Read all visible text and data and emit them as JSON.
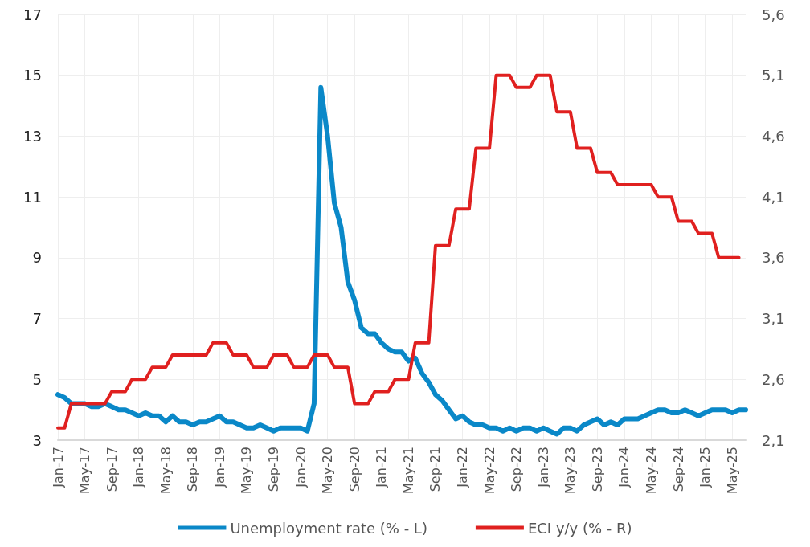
{
  "chart_data": {
    "type": "line",
    "categories": [
      "Jan-17",
      null,
      null,
      null,
      "May-17",
      null,
      null,
      null,
      "Sep-17",
      null,
      null,
      null,
      "Jan-18",
      null,
      null,
      null,
      "May-18",
      null,
      null,
      null,
      "Sep-18",
      null,
      null,
      null,
      "Jan-19",
      null,
      null,
      null,
      "May-19",
      null,
      null,
      null,
      "Sep-19",
      null,
      null,
      null,
      "Jan-20",
      null,
      null,
      null,
      "May-20",
      null,
      null,
      null,
      "Sep-20",
      null,
      null,
      null,
      "Jan-21",
      null,
      null,
      null,
      "May-21",
      null,
      null,
      null,
      "Sep-21",
      null,
      null,
      null,
      "Jan-22",
      null,
      null,
      null,
      "May-22",
      null,
      null,
      null,
      "Sep-22",
      null,
      null,
      null,
      "Jan-23",
      null,
      null,
      null,
      "May-23",
      null,
      null,
      null,
      "Sep-23",
      null,
      null,
      null,
      "Jan-24",
      null,
      null,
      null,
      "May-24",
      null,
      null,
      null,
      "Sep-24",
      null,
      null,
      null,
      "Jan-25",
      null,
      null,
      null,
      "May-25",
      null,
      null
    ],
    "series": [
      {
        "name": "Unemployment rate (% - L)",
        "color": "#0a88c8",
        "values": [
          4.5,
          4.4,
          4.2,
          4.2,
          4.2,
          4.1,
          4.1,
          4.2,
          4.1,
          4.0,
          4.0,
          3.9,
          3.8,
          3.9,
          3.8,
          3.8,
          3.6,
          3.8,
          3.6,
          3.6,
          3.5,
          3.6,
          3.6,
          3.7,
          3.8,
          3.6,
          3.6,
          3.5,
          3.4,
          3.4,
          3.5,
          3.4,
          3.3,
          3.4,
          3.4,
          3.4,
          3.4,
          3.3,
          4.2,
          14.6,
          13.0,
          10.8,
          10.0,
          8.2,
          7.6,
          6.7,
          6.5,
          6.5,
          6.2,
          6.0,
          5.9,
          5.9,
          5.6,
          5.7,
          5.2,
          4.9,
          4.5,
          4.3,
          4.0,
          3.7,
          3.8,
          3.6,
          3.5,
          3.5,
          3.4,
          3.4,
          3.3,
          3.4,
          3.3,
          3.4,
          3.4,
          3.3,
          3.4,
          3.3,
          3.2,
          3.4,
          3.4,
          3.3,
          3.5,
          3.6,
          3.7,
          3.5,
          3.6,
          3.5,
          3.7,
          3.7,
          3.7,
          3.8,
          3.9,
          4.0,
          4.0,
          3.9,
          3.9,
          4.0,
          3.9,
          3.8,
          3.9,
          4.0,
          4.0,
          4.0,
          3.9,
          4.0,
          4.0
        ]
      },
      {
        "name": "ECI y/y (% - R)",
        "color": "#e0201f",
        "axis": "y2",
        "values": [
          2.2,
          2.2,
          2.4,
          2.4,
          2.4,
          2.4,
          2.4,
          2.4,
          2.5,
          2.5,
          2.5,
          2.6,
          2.6,
          2.6,
          2.7,
          2.7,
          2.7,
          2.8,
          2.8,
          2.8,
          2.8,
          2.8,
          2.8,
          2.9,
          2.9,
          2.9,
          2.8,
          2.8,
          2.8,
          2.7,
          2.7,
          2.7,
          2.8,
          2.8,
          2.8,
          2.7,
          2.7,
          2.7,
          2.8,
          2.8,
          2.8,
          2.7,
          2.7,
          2.7,
          2.4,
          2.4,
          2.4,
          2.5,
          2.5,
          2.5,
          2.6,
          2.6,
          2.6,
          2.9,
          2.9,
          2.9,
          3.7,
          3.7,
          3.7,
          4.0,
          4.0,
          4.0,
          4.5,
          4.5,
          4.5,
          5.1,
          5.1,
          5.1,
          5.0,
          5.0,
          5.0,
          5.1,
          5.1,
          5.1,
          4.8,
          4.8,
          4.8,
          4.5,
          4.5,
          4.5,
          4.3,
          4.3,
          4.3,
          4.2,
          4.2,
          4.2,
          4.2,
          4.2,
          4.2,
          4.1,
          4.1,
          4.1,
          3.9,
          3.9,
          3.9,
          3.8,
          3.8,
          3.8,
          3.6,
          3.6,
          3.6,
          3.6,
          null
        ]
      }
    ],
    "ylim": [
      3,
      17
    ],
    "yticks": [
      3,
      5,
      7,
      9,
      11,
      13,
      15,
      17
    ],
    "y2lim": [
      2.1,
      5.6
    ],
    "y2ticks": [
      {
        "value": 2.1,
        "label": "2,1"
      },
      {
        "value": 2.6,
        "label": "2,6"
      },
      {
        "value": 3.1,
        "label": "3,1"
      },
      {
        "value": 3.6,
        "label": "3,6"
      },
      {
        "value": 4.1,
        "label": "4,1"
      },
      {
        "value": 4.6,
        "label": "4,6"
      },
      {
        "value": 5.1,
        "label": "5,1"
      },
      {
        "value": 5.6,
        "label": "5,6"
      }
    ],
    "grid": true,
    "legend": "bottom",
    "marker": "none",
    "line_style": "solid"
  }
}
